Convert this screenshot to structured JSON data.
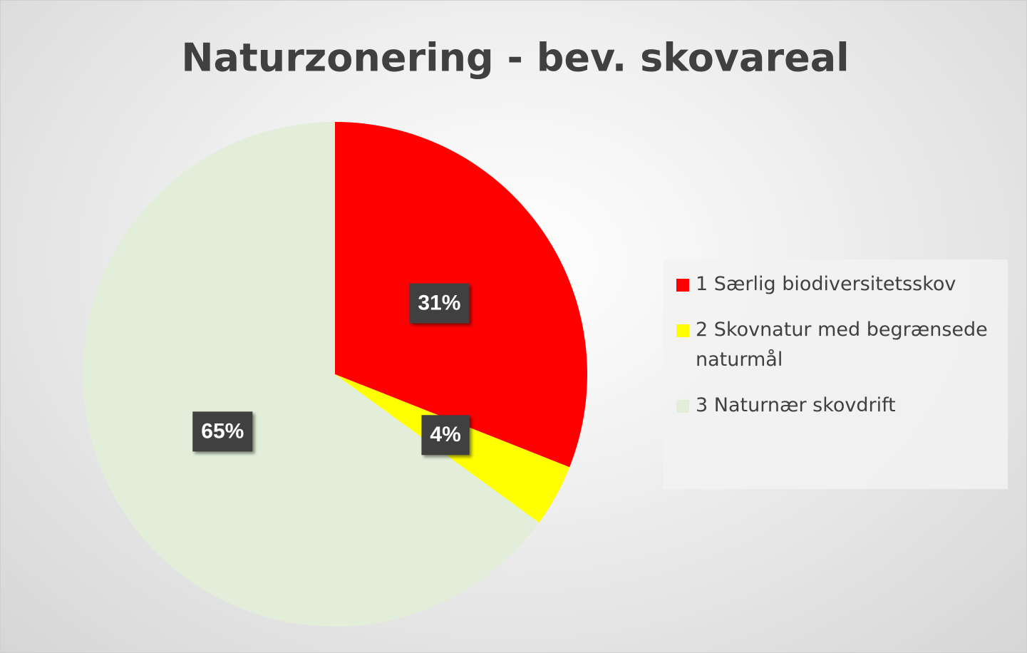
{
  "chart_data": {
    "type": "pie",
    "title": "Naturzonering - bev. skovareal",
    "categories": [
      "1 Særlig biodiversitetsskov",
      "2 Skovnatur med begrænsede naturmål",
      "3 Naturnær skovdrift"
    ],
    "values": [
      31,
      4,
      65
    ],
    "value_labels": [
      "31%",
      "4%",
      "65%"
    ],
    "colors": [
      "#ff0000",
      "#ffff00",
      "#e2eed9"
    ],
    "legend": "right"
  }
}
